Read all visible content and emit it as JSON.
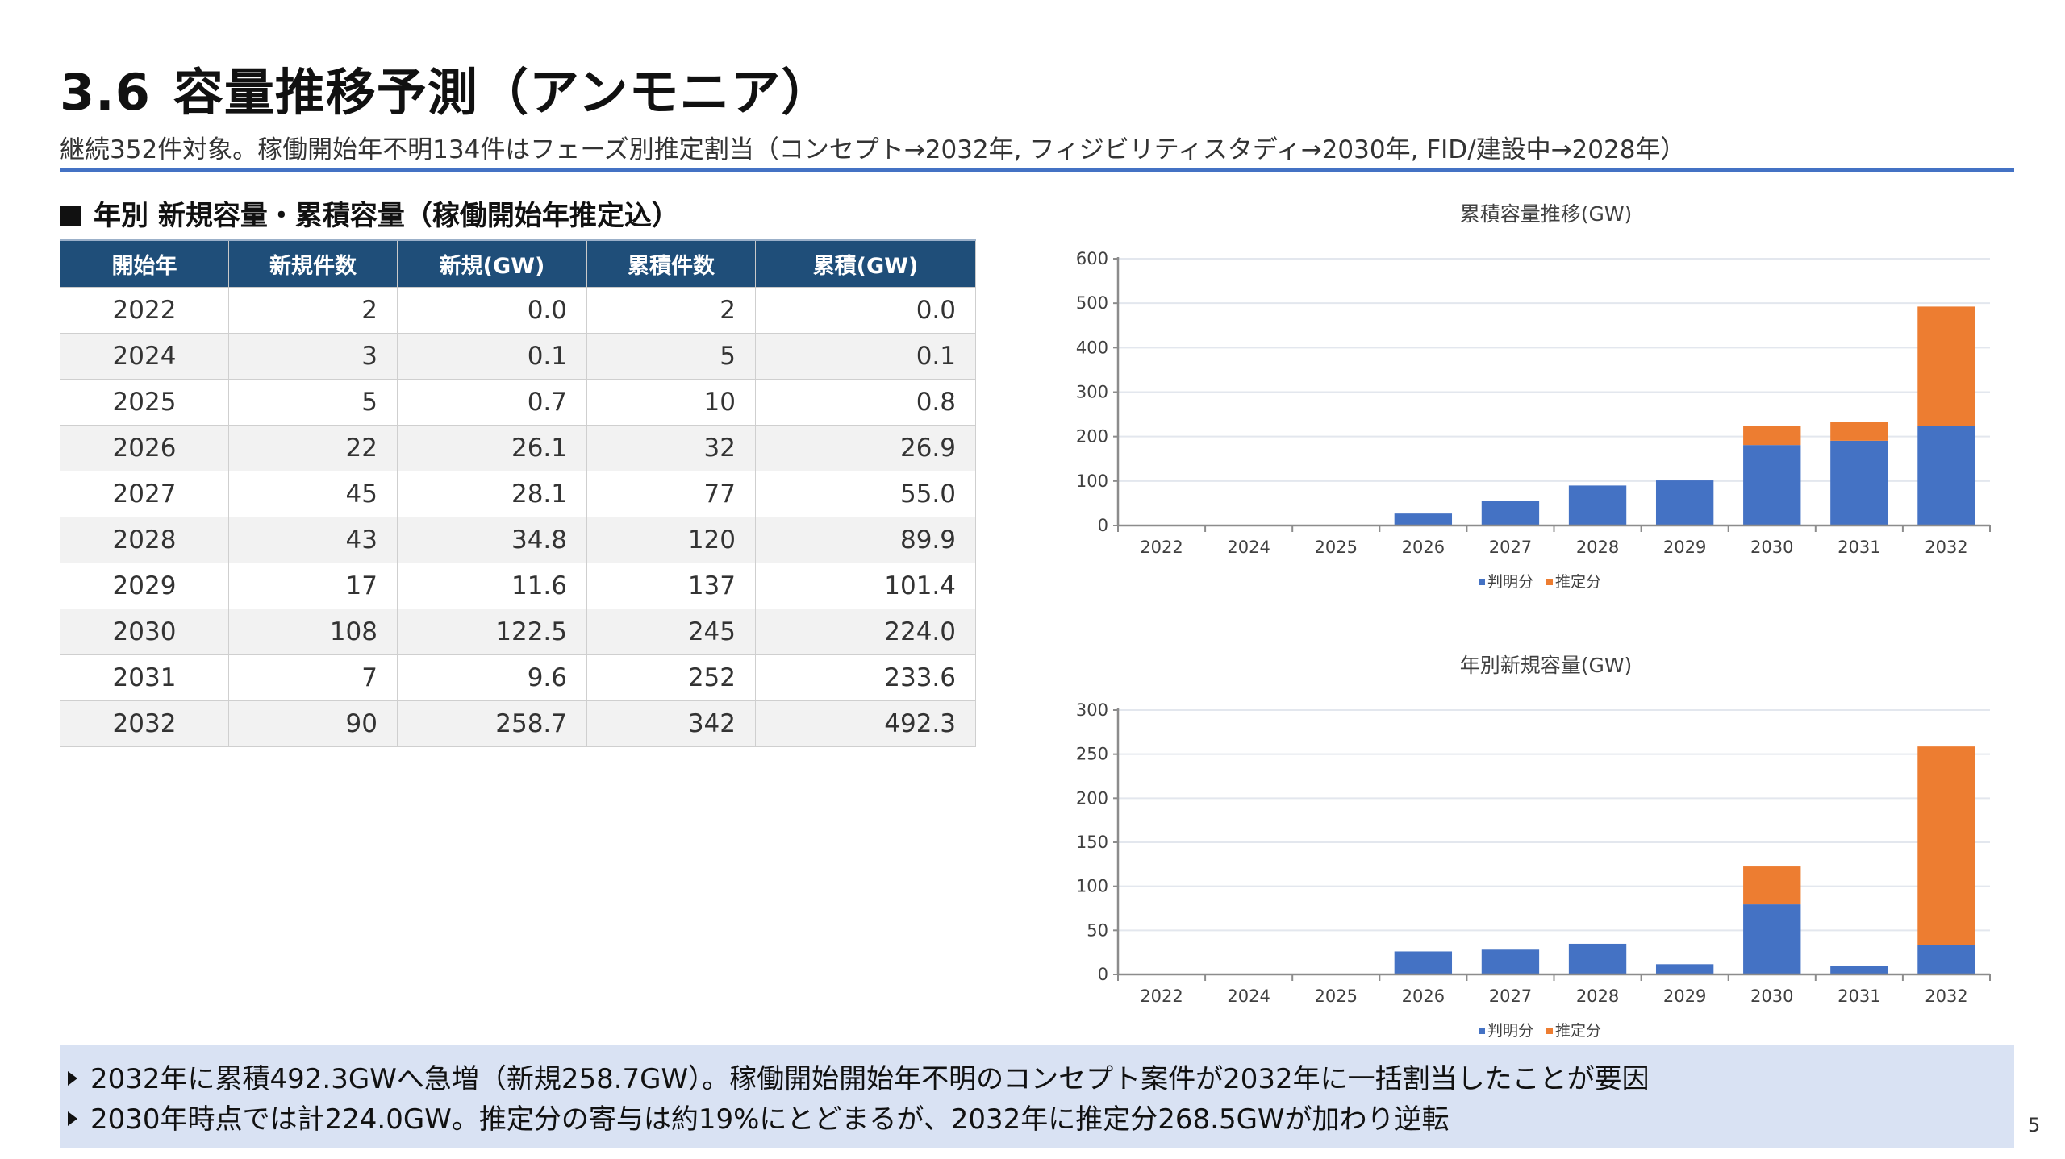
{
  "header": {
    "section_number": "3.6",
    "title": "容量推移予測（アンモニア）",
    "subtitle": "継続352件対象。稼働開始年不明134件はフェーズ別推定割当（コンセプト→2032年, フィジビリティスタディ→2030年, FID/建設中→2028年）"
  },
  "section_heading": "年別 新規容量・累積容量（稼働開始年推定込）",
  "table": {
    "columns": [
      "開始年",
      "新規件数",
      "新規(GW)",
      "累積件数",
      "累積(GW)"
    ],
    "rows": [
      [
        "2022",
        "2",
        "0.0",
        "2",
        "0.0"
      ],
      [
        "2024",
        "3",
        "0.1",
        "5",
        "0.1"
      ],
      [
        "2025",
        "5",
        "0.7",
        "10",
        "0.8"
      ],
      [
        "2026",
        "22",
        "26.1",
        "32",
        "26.9"
      ],
      [
        "2027",
        "45",
        "28.1",
        "77",
        "55.0"
      ],
      [
        "2028",
        "43",
        "34.8",
        "120",
        "89.9"
      ],
      [
        "2029",
        "17",
        "11.6",
        "137",
        "101.4"
      ],
      [
        "2030",
        "108",
        "122.5",
        "245",
        "224.0"
      ],
      [
        "2031",
        "7",
        "9.6",
        "252",
        "233.6"
      ],
      [
        "2032",
        "90",
        "258.7",
        "342",
        "492.3"
      ]
    ]
  },
  "colors": {
    "known": "#4472c4",
    "estimated": "#ed7d31",
    "header_bg": "#1f4e79",
    "accent_rule": "#4472c4",
    "summary_bg": "#d9e2f3"
  },
  "chart_data": [
    {
      "type": "bar",
      "stacked": true,
      "title": "累積容量推移(GW)",
      "categories": [
        "2022",
        "2024",
        "2025",
        "2026",
        "2027",
        "2028",
        "2029",
        "2030",
        "2031",
        "2032"
      ],
      "series": [
        {
          "name": "判明分",
          "values": [
            0.0,
            0.1,
            0.8,
            26.9,
            55.0,
            89.9,
            101.4,
            181.0,
            190.6,
            223.8
          ]
        },
        {
          "name": "推定分",
          "values": [
            0,
            0,
            0,
            0,
            0,
            0,
            0,
            43.0,
            43.0,
            268.5
          ]
        }
      ],
      "ylim": [
        0,
        600
      ],
      "yticks": [
        0,
        100,
        200,
        300,
        400,
        500,
        600
      ],
      "grid": true,
      "legend": "bottom",
      "xlabel": "",
      "ylabel": ""
    },
    {
      "type": "bar",
      "stacked": true,
      "title": "年別新規容量(GW)",
      "categories": [
        "2022",
        "2024",
        "2025",
        "2026",
        "2027",
        "2028",
        "2029",
        "2030",
        "2031",
        "2032"
      ],
      "series": [
        {
          "name": "判明分",
          "values": [
            0.0,
            0.1,
            0.7,
            26.1,
            28.1,
            34.8,
            11.6,
            79.5,
            9.6,
            33.2
          ]
        },
        {
          "name": "推定分",
          "values": [
            0,
            0,
            0,
            0,
            0,
            0,
            0,
            43.0,
            0,
            225.5
          ]
        }
      ],
      "ylim": [
        0,
        300
      ],
      "yticks": [
        0,
        50,
        100,
        150,
        200,
        250,
        300
      ],
      "grid": true,
      "legend": "bottom",
      "xlabel": "",
      "ylabel": ""
    }
  ],
  "summary": [
    "2032年に累積492.3GWへ急増（新規258.7GW）。稼働開始開始年不明のコンセプト案件が2032年に一括割当したことが要因",
    "2030年時点では計224.0GW。推定分の寄与は約19%にとどまるが、2032年に推定分268.5GWが加わり逆転"
  ],
  "page_number": "5"
}
